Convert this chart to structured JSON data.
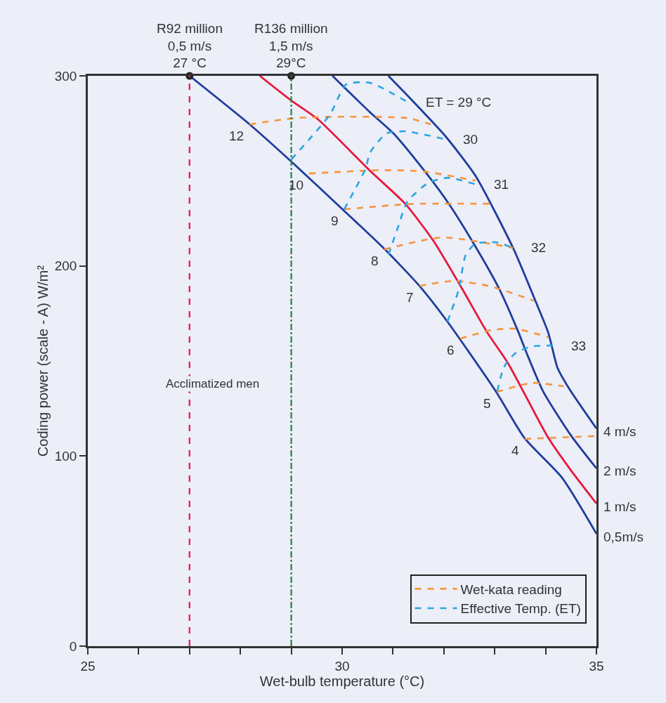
{
  "chart_data": {
    "type": "line",
    "xlabel": "Wet-bulb temperature (°C)",
    "ylabel": "Coding power (scale - A) W/m²",
    "xlim": [
      25,
      35
    ],
    "ylim": [
      0,
      300
    ],
    "xticks": [
      25,
      {
        "value": 26,
        "label": null
      },
      {
        "value": 27,
        "label": null
      },
      {
        "value": 28,
        "label": null
      },
      {
        "value": 29,
        "label": null
      },
      30,
      {
        "value": 31,
        "label": null
      },
      {
        "value": 32,
        "label": null
      },
      {
        "value": 33,
        "label": null
      },
      {
        "value": 34,
        "label": null
      },
      35
    ],
    "yticks": [
      0,
      100,
      200,
      300
    ],
    "grid": false,
    "legend": "bottom right",
    "marker": "none",
    "series": [
      {
        "name": "0,5m/s",
        "color": "#1f3d9c",
        "x": [
          27.0,
          28.18,
          29.0,
          30.04,
          30.83,
          31.52,
          32.07,
          33.02,
          33.59,
          34.32,
          35.0
        ],
        "values": [
          300,
          274.5,
          254.9,
          229,
          209,
          189.5,
          170.7,
          134.1,
          109.3,
          88.7,
          59.1
        ]
      },
      {
        "name": "1 m/s",
        "color": "#e8193c",
        "x": [
          28.38,
          29.0,
          29.53,
          30.55,
          31.24,
          31.8,
          32.35,
          32.85,
          33.26,
          34.05,
          34.5,
          35.0
        ],
        "values": [
          300,
          287,
          277,
          250,
          232.7,
          213,
          188.4,
          165.1,
          148.9,
          109.7,
          92.4,
          75.0
        ]
      },
      {
        "name": "2 m/s",
        "color": "#1f3d9c",
        "x": [
          29.81,
          30.55,
          31.01,
          31.66,
          32.07,
          32.53,
          33.08,
          33.45,
          33.63,
          33.95,
          34.5,
          35.0
        ],
        "values": [
          300,
          280.8,
          269.7,
          248.6,
          233.8,
          214.3,
          188.4,
          166.2,
          154,
          134.1,
          110.8,
          93.5
        ]
      },
      {
        "name": "4 m/s",
        "color": "#1f3d9c",
        "x": [
          30.91,
          31.38,
          32.02,
          32.62,
          33.36,
          33.81,
          34.05,
          34.18,
          34.23,
          34.46,
          35.0
        ],
        "values": [
          300,
          287,
          268.6,
          247.5,
          209.5,
          181,
          165.1,
          151.5,
          146.7,
          135.6,
          114.5
        ]
      },
      {
        "name": "Wet-kata reading",
        "color": "#f7943c",
        "line_style": "dashed",
        "x": [
          28.18,
          29.08,
          30.08,
          31.28,
          31.74,
          null,
          29.35,
          30.77,
          31.6,
          32.62,
          null,
          30.04,
          31.01,
          31.46,
          32.9,
          null,
          30.83,
          31.97,
          33.36,
          null,
          31.52,
          32.21,
          32.94,
          33.77,
          null,
          32.32,
          32.94,
          33.4,
          34.05,
          null,
          33.04,
          33.43,
          33.73,
          34.36,
          null,
          33.59,
          35.0
        ],
        "values": [
          274.5,
          277.8,
          278.5,
          277.8,
          274.5,
          null,
          248.6,
          250.4,
          249.7,
          244.9,
          null,
          229.8,
          232,
          232.7,
          232.7,
          null,
          208.7,
          215,
          209.5,
          null,
          189.5,
          192.1,
          189.1,
          181.7,
          null,
          161.8,
          166.2,
          167,
          162.5,
          null,
          133.7,
          136.7,
          138.5,
          136.7,
          null,
          109,
          110.5
        ]
      },
      {
        "name": "Effective Temp. (ET)",
        "color": "#2aa6df",
        "line_style": "dashed",
        "x": [
          29.0,
          29.76,
          30.08,
          30.55,
          31.28,
          null,
          30.04,
          30.46,
          30.55,
          30.87,
          31.24,
          32.02,
          null,
          30.91,
          31.1,
          31.28,
          31.7,
          32.07,
          32.62,
          null,
          32.07,
          32.29,
          32.43,
          32.62,
          33.04,
          33.36,
          null,
          33.05,
          33.18,
          33.4,
          33.73,
          34.14
        ],
        "values": [
          256,
          279.6,
          295.5,
          296.3,
          286.3,
          null,
          229.8,
          251.2,
          259.7,
          269.7,
          270.8,
          266.7,
          null,
          205.8,
          220.5,
          233.8,
          243.8,
          246.4,
          243,
          null,
          170.7,
          187.3,
          205.8,
          211.7,
          212.4,
          209.5,
          null,
          134.1,
          146.7,
          154,
          157.7,
          158.1
        ]
      },
      {
        "type": "scatter",
        "color": "#222222",
        "marker": "circle",
        "x": [
          27,
          29
        ],
        "values": [
          300,
          300
        ]
      }
    ],
    "ref_lines": [
      {
        "axis": "x",
        "value": 27,
        "label": "R92 million\n0,5 m/s\n27 °C",
        "color": "#e8245a",
        "line_style": "dashed"
      },
      {
        "axis": "x",
        "value": 29,
        "label": "R136 million\n1,5 m/s\n29°C",
        "color": "#2e8b57",
        "line_style": "dashdot"
      }
    ],
    "annotations": [
      {
        "text": "12",
        "x": 28.18,
        "y": 274.5
      },
      {
        "text": "10",
        "x": 29.35,
        "y": 248.6
      },
      {
        "text": "9",
        "x": 30.04,
        "y": 229.8
      },
      {
        "text": "8",
        "x": 30.83,
        "y": 208.7
      },
      {
        "text": "7",
        "x": 31.52,
        "y": 189.5
      },
      {
        "text": "6",
        "x": 32.32,
        "y": 161.8
      },
      {
        "text": "5",
        "x": 33.04,
        "y": 133.7
      },
      {
        "text": "4",
        "x": 33.59,
        "y": 109
      },
      {
        "text": "ET = 29 °C",
        "x": 31.28,
        "y": 286.3
      },
      {
        "text": "30",
        "x": 32.02,
        "y": 266.7
      },
      {
        "text": "31",
        "x": 32.62,
        "y": 243
      },
      {
        "text": "32",
        "x": 33.36,
        "y": 209.5
      },
      {
        "text": "33",
        "x": 34.14,
        "y": 158.1
      },
      "Acclimatized men"
    ]
  }
}
